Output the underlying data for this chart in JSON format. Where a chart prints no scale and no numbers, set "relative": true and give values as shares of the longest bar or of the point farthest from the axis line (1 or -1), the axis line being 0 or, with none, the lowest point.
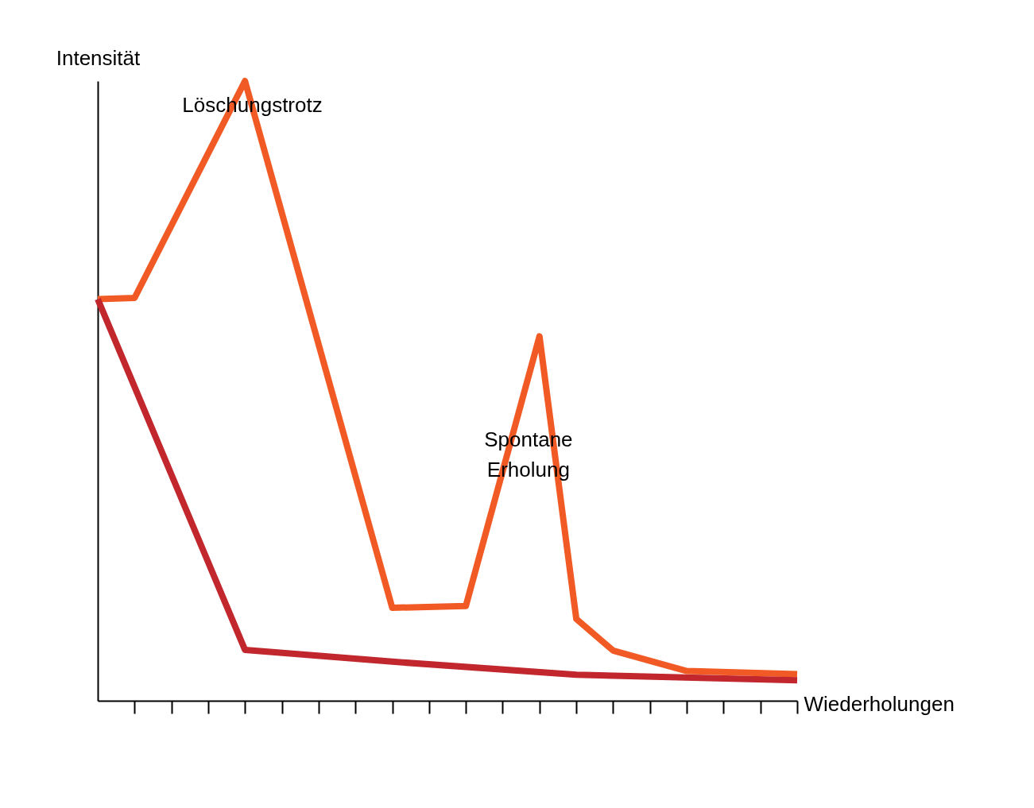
{
  "chart_data": {
    "type": "line",
    "relative": true,
    "xlabel": "Wiederholungen",
    "ylabel": "Intensität",
    "categories": [
      null,
      null,
      null,
      null,
      null,
      null,
      null,
      null,
      null,
      null,
      null,
      null,
      null,
      null,
      null,
      null,
      null,
      null,
      null,
      null
    ],
    "series": [
      {
        "color": "#f15a24",
        "values": [
          0.648,
          0.65,
          null,
          null,
          1.0,
          null,
          null,
          null,
          0.15,
          null,
          0.153,
          null,
          0.588,
          0.132,
          0.081,
          null,
          0.048,
          null,
          null,
          0.043
        ]
      },
      {
        "color": "#c1272d",
        "values": [
          0.648,
          null,
          null,
          null,
          0.082,
          null,
          null,
          null,
          0.063,
          null,
          null,
          null,
          null,
          0.042,
          null,
          null,
          null,
          null,
          null,
          0.033
        ]
      }
    ],
    "annotations": [
      "Löschungstrotz",
      "Spontane Erholung"
    ],
    "tick_labels": false,
    "line_style": "solid",
    "marker": "none"
  }
}
